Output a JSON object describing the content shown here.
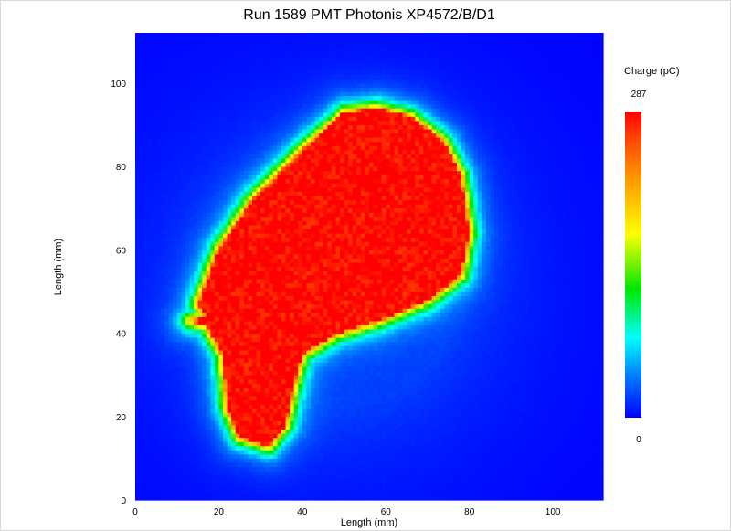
{
  "chart_data": {
    "type": "heatmap",
    "title": "Run 1589 PMT Photonis XP4572/B/D1",
    "xlabel": "Length (mm)",
    "ylabel": "Length (mm)",
    "xlim": [
      0,
      112
    ],
    "ylim": [
      0,
      112
    ],
    "x_ticks": [
      "0",
      "20",
      "40",
      "60",
      "80",
      "100"
    ],
    "y_ticks": [
      "0",
      "20",
      "40",
      "60",
      "80",
      "100"
    ],
    "colorbar": {
      "label": "Charge (pC)",
      "min": "0",
      "max": "287",
      "vmin": 0,
      "vmax": 287
    },
    "colormap": [
      "#0000ff",
      "#0080ff",
      "#00ffff",
      "#00e600",
      "#ffff00",
      "#ff9900",
      "#ff0000"
    ],
    "saturated_region_outline_mm": [
      [
        15,
        47
      ],
      [
        20,
        60
      ],
      [
        28,
        72
      ],
      [
        40,
        84
      ],
      [
        50,
        93
      ],
      [
        58,
        94
      ],
      [
        66,
        92
      ],
      [
        74,
        86
      ],
      [
        78,
        78
      ],
      [
        80,
        64
      ],
      [
        78,
        54
      ],
      [
        70,
        48
      ],
      [
        58,
        43
      ],
      [
        48,
        40
      ],
      [
        40,
        35
      ],
      [
        38,
        28
      ],
      [
        36,
        18
      ],
      [
        32,
        13
      ],
      [
        25,
        15
      ],
      [
        22,
        22
      ],
      [
        21,
        35
      ],
      [
        17,
        42
      ],
      [
        13,
        43
      ],
      [
        17,
        44
      ]
    ],
    "background_level_pC": 12,
    "halo_level_pC": 70
  }
}
